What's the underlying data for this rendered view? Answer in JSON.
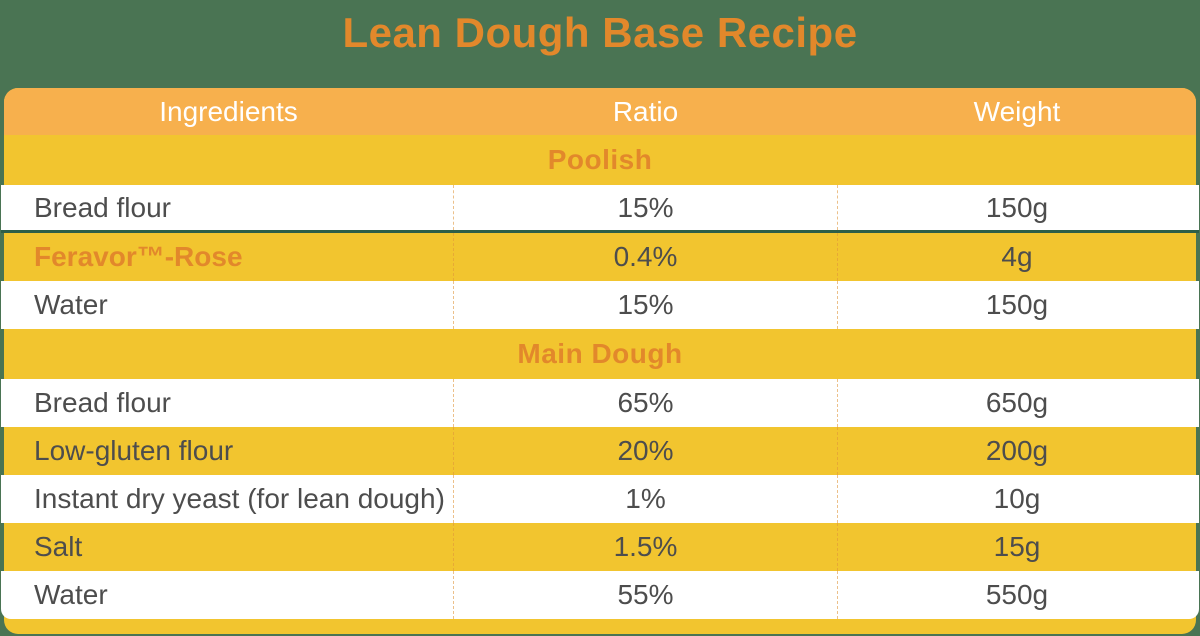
{
  "title": "Lean Dough Base Recipe",
  "table": {
    "columns": [
      "Ingredients",
      "Ratio",
      "Weight"
    ],
    "sections": [
      {
        "name": "Poolish",
        "rows": [
          {
            "ingredient": "Bread flour",
            "ratio": "15%",
            "weight": "150g"
          },
          {
            "ingredient": "Feravor™-Rose",
            "ratio": "0.4%",
            "weight": "4g",
            "highlight": true
          },
          {
            "ingredient": "Water",
            "ratio": "15%",
            "weight": "150g"
          }
        ]
      },
      {
        "name": "Main Dough",
        "rows": [
          {
            "ingredient": "Bread flour",
            "ratio": "65%",
            "weight": "650g"
          },
          {
            "ingredient": "Low-gluten flour",
            "ratio": "20%",
            "weight": "200g"
          },
          {
            "ingredient": "Instant dry yeast (for lean dough)",
            "ratio": "1%",
            "weight": "10g"
          },
          {
            "ingredient": "Salt",
            "ratio": "1.5%",
            "weight": "15g"
          },
          {
            "ingredient": "Water",
            "ratio": "55%",
            "weight": "550g"
          }
        ]
      }
    ]
  },
  "colors": {
    "background": "#4A7453",
    "header_row": "#F7B04D",
    "accent_yellow": "#F2C52F",
    "accent_orange": "#E2882B",
    "highlight_border": "#2E5F48",
    "body_text": "#4D4D4D"
  }
}
